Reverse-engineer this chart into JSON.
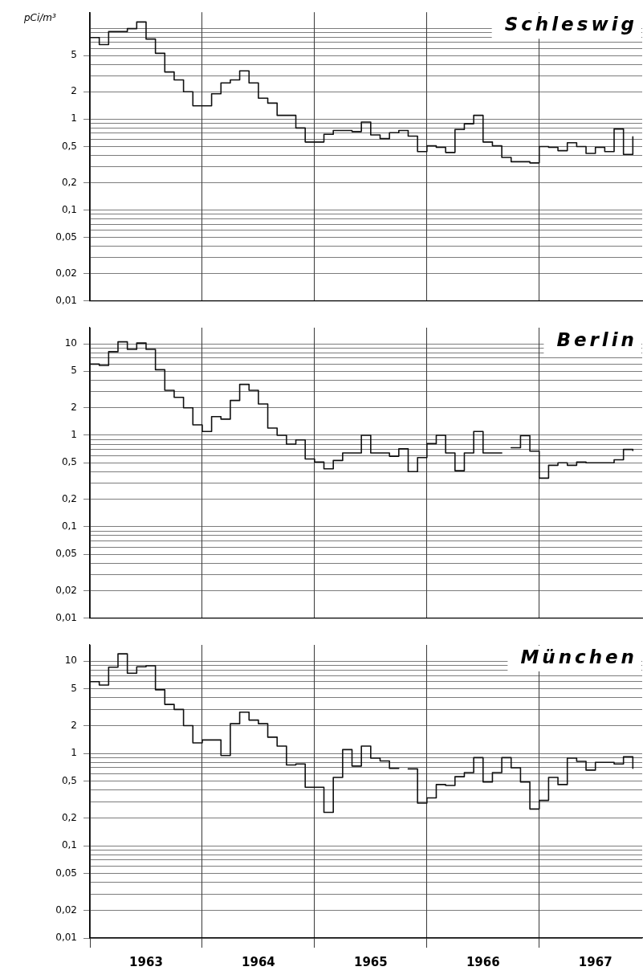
{
  "chart_data": [
    {
      "type": "step",
      "title": "Schleswig",
      "ylabel": "pCi/m³",
      "color": "#111111",
      "line_style": "solid",
      "log": true,
      "grid": true,
      "tick_labels": "y",
      "x": [
        "1963-01",
        "1963-02",
        "1963-03",
        "1963-04",
        "1963-05",
        "1963-06",
        "1963-07",
        "1963-08",
        "1963-09",
        "1963-10",
        "1963-11",
        "1963-12",
        "1964-01",
        "1964-02",
        "1964-03",
        "1964-04",
        "1964-05",
        "1964-06",
        "1964-07",
        "1964-08",
        "1964-09",
        "1964-10",
        "1964-11",
        "1964-12",
        "1965-01",
        "1965-02",
        "1965-03",
        "1965-04",
        "1965-05",
        "1965-06",
        "1965-07",
        "1965-08",
        "1965-09",
        "1965-10",
        "1965-11",
        "1965-12",
        "1966-01",
        "1966-02",
        "1966-03",
        "1966-04",
        "1966-05",
        "1966-06",
        "1966-07",
        "1966-08",
        "1966-09",
        "1966-10",
        "1966-11",
        "1966-12",
        "1967-01",
        "1967-02",
        "1967-03",
        "1967-04",
        "1967-05",
        "1967-06",
        "1967-07",
        "1967-08",
        "1967-09",
        "1967-10",
        "1967-11"
      ],
      "values": [
        7.9,
        6.6,
        9.2,
        9.2,
        9.9,
        11.7,
        7.6,
        5.3,
        3.3,
        2.7,
        2.0,
        1.4,
        1.4,
        1.9,
        2.5,
        2.7,
        3.4,
        2.5,
        1.7,
        1.5,
        1.1,
        1.1,
        0.8,
        0.56,
        0.56,
        0.68,
        0.75,
        0.75,
        0.73,
        0.93,
        0.67,
        0.61,
        0.71,
        0.75,
        0.65,
        0.44,
        0.51,
        0.49,
        0.43,
        0.77,
        0.89,
        1.1,
        0.56,
        0.51,
        0.38,
        0.34,
        0.34,
        0.33,
        0.5,
        0.49,
        0.45,
        0.55,
        0.5,
        0.42,
        0.49,
        0.44,
        0.78,
        0.41,
        0.64
      ],
      "xlim": [
        "1963-01",
        "1967-12"
      ],
      "xticks": [
        {
          "value": "1963-01",
          "label": null
        },
        {
          "value": "1964-01",
          "label": null
        },
        {
          "value": "1965-01",
          "label": null
        },
        {
          "value": "1966-01",
          "label": null
        },
        {
          "value": "1967-01",
          "label": null
        }
      ],
      "ylim": [
        0.01,
        15
      ],
      "yticks": [
        {
          "value": 0.01,
          "label": "0,01"
        },
        {
          "value": 0.02,
          "label": "0,02"
        },
        {
          "value": 0.03,
          "label": null
        },
        {
          "value": 0.04,
          "label": null
        },
        {
          "value": 0.05,
          "label": "0,05"
        },
        {
          "value": 0.06,
          "label": null
        },
        {
          "value": 0.07,
          "label": null
        },
        {
          "value": 0.08,
          "label": null
        },
        {
          "value": 0.09,
          "label": null
        },
        {
          "value": 0.1,
          "label": "0,1"
        },
        {
          "value": 0.2,
          "label": "0,2"
        },
        {
          "value": 0.3,
          "label": null
        },
        {
          "value": 0.4,
          "label": null
        },
        {
          "value": 0.5,
          "label": "0,5"
        },
        {
          "value": 0.6,
          "label": null
        },
        {
          "value": 0.7,
          "label": null
        },
        {
          "value": 0.8,
          "label": null
        },
        {
          "value": 0.9,
          "label": null
        },
        1,
        2,
        {
          "value": 3,
          "label": null
        },
        {
          "value": 4,
          "label": null
        },
        5,
        {
          "value": 6,
          "label": null
        },
        {
          "value": 7,
          "label": null
        },
        {
          "value": 8,
          "label": null
        },
        {
          "value": 9,
          "label": null
        },
        {
          "value": 10,
          "label": null
        }
      ]
    },
    {
      "type": "step",
      "title": "Berlin",
      "color": "#111111",
      "line_style": "solid",
      "log": true,
      "grid": true,
      "tick_labels": "y",
      "x": [
        "1963-01",
        "1963-02",
        "1963-03",
        "1963-04",
        "1963-05",
        "1963-06",
        "1963-07",
        "1963-08",
        "1963-09",
        "1963-10",
        "1963-11",
        "1963-12",
        "1964-01",
        "1964-02",
        "1964-03",
        "1964-04",
        "1964-05",
        "1964-06",
        "1964-07",
        "1964-08",
        "1964-09",
        "1964-10",
        "1964-11",
        "1964-12",
        "1965-01",
        "1965-02",
        "1965-03",
        "1965-04",
        "1965-05",
        "1965-06",
        "1965-07",
        "1965-08",
        "1965-09",
        "1965-10",
        "1965-11",
        "1965-12",
        "1966-01",
        "1966-02",
        "1966-03",
        "1966-04",
        "1966-05",
        "1966-06",
        "1966-07",
        "1966-08",
        "1966-09",
        "1966-10",
        "1966-11",
        "1966-12",
        "1967-01",
        "1967-02",
        "1967-03",
        "1967-04",
        "1967-05",
        "1967-06",
        "1967-07",
        "1967-08",
        "1967-09",
        "1967-10",
        "1967-11"
      ],
      "values": [
        6.0,
        5.8,
        8.2,
        10.5,
        8.7,
        10.2,
        8.7,
        5.2,
        3.1,
        2.6,
        2.0,
        1.3,
        1.1,
        1.6,
        1.5,
        2.4,
        3.6,
        3.1,
        2.2,
        1.2,
        1.0,
        0.8,
        0.89,
        0.55,
        0.51,
        0.43,
        0.53,
        0.64,
        0.64,
        1.0,
        0.64,
        0.64,
        0.59,
        0.71,
        0.4,
        0.57,
        0.81,
        1.0,
        0.64,
        0.41,
        0.64,
        1.1,
        0.64,
        0.64,
        null,
        0.73,
        0.99,
        0.67,
        0.34,
        0.47,
        0.5,
        0.47,
        0.51,
        0.5,
        0.5,
        0.5,
        0.54,
        0.7,
        0.68
      ],
      "xlim": [
        "1963-01",
        "1967-12"
      ],
      "xticks": [
        {
          "value": "1963-01",
          "label": null
        },
        {
          "value": "1964-01",
          "label": null
        },
        {
          "value": "1965-01",
          "label": null
        },
        {
          "value": "1966-01",
          "label": null
        },
        {
          "value": "1967-01",
          "label": null
        }
      ],
      "ylim": [
        0.01,
        15
      ],
      "yticks": [
        {
          "value": 0.01,
          "label": "0,01"
        },
        {
          "value": 0.02,
          "label": "0,02"
        },
        {
          "value": 0.03,
          "label": null
        },
        {
          "value": 0.04,
          "label": null
        },
        {
          "value": 0.05,
          "label": "0,05"
        },
        {
          "value": 0.06,
          "label": null
        },
        {
          "value": 0.07,
          "label": null
        },
        {
          "value": 0.08,
          "label": null
        },
        {
          "value": 0.09,
          "label": null
        },
        {
          "value": 0.1,
          "label": "0,1"
        },
        {
          "value": 0.2,
          "label": "0,2"
        },
        {
          "value": 0.3,
          "label": null
        },
        {
          "value": 0.4,
          "label": null
        },
        {
          "value": 0.5,
          "label": "0,5"
        },
        {
          "value": 0.6,
          "label": null
        },
        {
          "value": 0.7,
          "label": null
        },
        {
          "value": 0.8,
          "label": null
        },
        {
          "value": 0.9,
          "label": null
        },
        1,
        2,
        {
          "value": 3,
          "label": null
        },
        {
          "value": 4,
          "label": null
        },
        5,
        {
          "value": 6,
          "label": null
        },
        {
          "value": 7,
          "label": null
        },
        {
          "value": 8,
          "label": null
        },
        {
          "value": 9,
          "label": null
        },
        10
      ]
    },
    {
      "type": "step",
      "title": "München",
      "color": "#111111",
      "line_style": "solid",
      "log": true,
      "grid": true,
      "x": [
        "1963-01",
        "1963-02",
        "1963-03",
        "1963-04",
        "1963-05",
        "1963-06",
        "1963-07",
        "1963-08",
        "1963-09",
        "1963-10",
        "1963-11",
        "1963-12",
        "1964-01",
        "1964-02",
        "1964-03",
        "1964-04",
        "1964-05",
        "1964-06",
        "1964-07",
        "1964-08",
        "1964-09",
        "1964-10",
        "1964-11",
        "1964-12",
        "1965-01",
        "1965-02",
        "1965-03",
        "1965-04",
        "1965-05",
        "1965-06",
        "1965-07",
        "1965-08",
        "1965-09",
        "1965-10",
        "1965-11",
        "1965-12",
        "1966-01",
        "1966-02",
        "1966-03",
        "1966-04",
        "1966-05",
        "1966-06",
        "1966-07",
        "1966-08",
        "1966-09",
        "1966-10",
        "1966-11",
        "1966-12",
        "1967-01",
        "1967-02",
        "1967-03",
        "1967-04",
        "1967-05",
        "1967-06",
        "1967-07",
        "1967-08",
        "1967-09",
        "1967-10",
        "1967-11"
      ],
      "values": [
        6.0,
        5.5,
        8.6,
        12,
        7.4,
        8.7,
        8.9,
        4.9,
        3.4,
        3.0,
        2.0,
        1.3,
        1.4,
        1.4,
        0.95,
        2.1,
        2.8,
        2.3,
        2.1,
        1.5,
        1.2,
        0.75,
        0.77,
        0.43,
        0.43,
        0.23,
        0.55,
        1.1,
        0.73,
        1.2,
        0.89,
        0.83,
        0.69,
        null,
        0.68,
        0.29,
        0.33,
        0.46,
        0.45,
        0.56,
        0.62,
        0.9,
        0.49,
        0.62,
        0.9,
        0.7,
        0.49,
        0.25,
        0.31,
        0.55,
        0.46,
        0.89,
        0.82,
        0.66,
        0.8,
        0.8,
        0.77,
        0.92,
        0.69
      ],
      "xlim": [
        "1963-01",
        "1967-12"
      ],
      "xticks": [
        {
          "value": "1963-01",
          "label": null
        },
        {
          "value": "1963-07",
          "label": "1963"
        },
        {
          "value": "1964-01",
          "label": null
        },
        {
          "value": "1964-07",
          "label": "1964"
        },
        {
          "value": "1965-01",
          "label": null
        },
        {
          "value": "1965-07",
          "label": "1965"
        },
        {
          "value": "1966-01",
          "label": null
        },
        {
          "value": "1966-07",
          "label": "1966"
        },
        {
          "value": "1967-01",
          "label": null
        },
        {
          "value": "1967-07",
          "label": "1967"
        }
      ],
      "ylim": [
        0.01,
        15
      ],
      "yticks": [
        {
          "value": 0.01,
          "label": "0,01"
        },
        {
          "value": 0.02,
          "label": "0,02"
        },
        {
          "value": 0.03,
          "label": null
        },
        {
          "value": 0.04,
          "label": null
        },
        {
          "value": 0.05,
          "label": "0,05"
        },
        {
          "value": 0.06,
          "label": null
        },
        {
          "value": 0.07,
          "label": null
        },
        {
          "value": 0.08,
          "label": null
        },
        {
          "value": 0.09,
          "label": null
        },
        {
          "value": 0.1,
          "label": "0,1"
        },
        {
          "value": 0.2,
          "label": "0,2"
        },
        {
          "value": 0.3,
          "label": null
        },
        {
          "value": 0.4,
          "label": null
        },
        {
          "value": 0.5,
          "label": "0,5"
        },
        {
          "value": 0.6,
          "label": null
        },
        {
          "value": 0.7,
          "label": null
        },
        {
          "value": 0.8,
          "label": null
        },
        {
          "value": 0.9,
          "label": null
        },
        1,
        2,
        {
          "value": 3,
          "label": null
        },
        {
          "value": 4,
          "label": null
        },
        5,
        {
          "value": 6,
          "label": null
        },
        {
          "value": 7,
          "label": null
        },
        {
          "value": 8,
          "label": null
        },
        {
          "value": 9,
          "label": null
        },
        10
      ]
    }
  ]
}
